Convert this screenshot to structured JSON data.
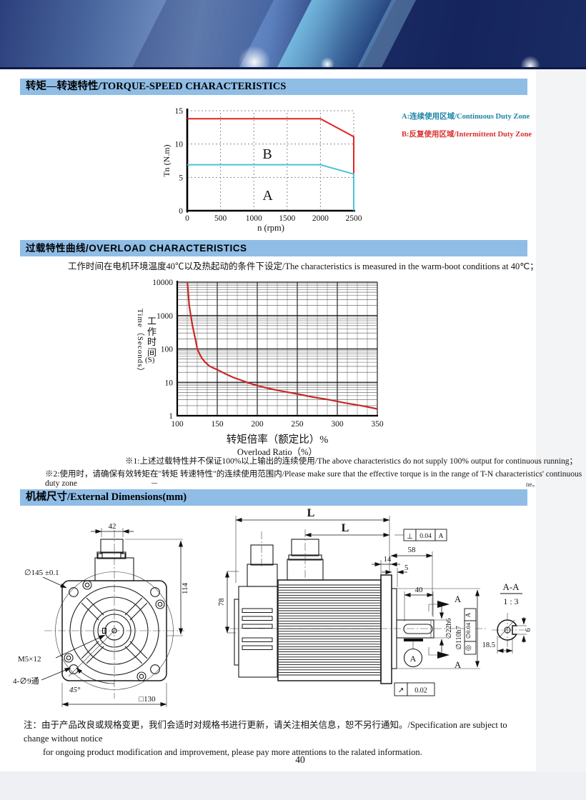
{
  "page": {
    "number": "40"
  },
  "sections": {
    "s1": "转矩—转速特性/TORQUE-SPEED CHARACTERISTICS",
    "s2": "过载特性曲线/OVERLOAD CHARACTERISTICS",
    "s3": "机械尺寸/External Dimensions(mm)"
  },
  "legend": {
    "a": "A:连续使用区域/Continuous Duty Zone",
    "a_color": "#1d86a8",
    "b": "B:反复使用区域/Intermittent Duty Zone",
    "b_color": "#d9312e"
  },
  "caption": "工作时间在电机环境温度40℃以及热起动的条件下设定/The characteristics is measured in the warm-boot conditions at 40℃；",
  "notes": {
    "n1": "※1:上述过载特性并不保证100%以上输出的连续使用/The above characteristics do not supply 100% output for continuous running；",
    "n2": "※2:使用时，请确保有效转矩在\"转矩 转速特性\"的连续使用范围内/Please make sure that the effective torque is in the range of T-N characteristics' continuous duty zone",
    "stray": "ne。",
    "bottom1": "注：由于产品改良或规格变更，我们会适时对规格书进行更新，请关注相关信息，恕不另行通知。/Specification are subject to change without notice",
    "bottom2": "for ongoing product modification and improvement, please pay more attentions to the ralated information."
  },
  "chart_data": [
    {
      "type": "line",
      "title": "Torque-Speed characteristics",
      "xlabel": "n (rpm)",
      "ylabel": "Tn (N.m)",
      "xlim": [
        0,
        2500
      ],
      "ylim": [
        0,
        15
      ],
      "xticks": [
        0,
        500,
        1000,
        1500,
        2000,
        2500
      ],
      "yticks": [
        0,
        5,
        10,
        15
      ],
      "grid": "dashed",
      "series": [
        {
          "name": "Intermittent duty limit (B)",
          "color": "#e02422",
          "points": [
            [
              0,
              13.8
            ],
            [
              2000,
              13.8
            ],
            [
              2500,
              11.1
            ],
            [
              2500,
              5.6
            ]
          ]
        },
        {
          "name": "Continuous duty limit (A)",
          "color": "#4cc2d6",
          "points": [
            [
              0,
              6.9
            ],
            [
              2000,
              6.9
            ],
            [
              2500,
              5.5
            ],
            [
              2500,
              0
            ]
          ]
        }
      ],
      "zone_labels": [
        {
          "text": "B",
          "x": 1130,
          "y": 7.8,
          "color": "#e02422"
        },
        {
          "text": "A",
          "x": 1130,
          "y": 1.6,
          "color": "#7fd2e2"
        }
      ]
    },
    {
      "type": "line",
      "title": "Overload characteristics",
      "yscale": "log",
      "xlabel_cn": "转矩倍率（额定比）%",
      "xlabel_en": "Overload Ratio（%）",
      "ylabel_en": "Time（Seconds）",
      "ylabel_cn": "工作时间",
      "ylabel_unit": "(S)",
      "xlim": [
        100,
        350
      ],
      "ylim": [
        1,
        10000
      ],
      "xticks": [
        100,
        150,
        200,
        250,
        300,
        350
      ],
      "yticks": [
        1,
        10,
        100,
        1000,
        10000
      ],
      "grid": "log",
      "series": [
        {
          "name": "overload time curve",
          "color": "#c82826",
          "points": [
            [
              112.5,
              10000
            ],
            [
              113,
              8000
            ],
            [
              114,
              4000
            ],
            [
              115,
              2000
            ],
            [
              117,
              1000
            ],
            [
              119,
              500
            ],
            [
              121,
              300
            ],
            [
              123,
              180
            ],
            [
              125,
              100
            ],
            [
              128,
              70
            ],
            [
              131,
              52
            ],
            [
              135,
              40
            ],
            [
              140,
              31
            ],
            [
              145,
              27
            ],
            [
              150,
              24
            ],
            [
              160,
              18
            ],
            [
              170,
              14
            ],
            [
              180,
              11.5
            ],
            [
              190,
              9.5
            ],
            [
              200,
              8
            ],
            [
              215,
              6.5
            ],
            [
              230,
              5.5
            ],
            [
              250,
              4.5
            ],
            [
              270,
              3.6
            ],
            [
              290,
              3
            ],
            [
              310,
              2.4
            ],
            [
              330,
              2
            ],
            [
              350,
              1.6
            ]
          ]
        }
      ]
    }
  ],
  "dims": {
    "front": {
      "top_width": "42",
      "bolt_circle": "∅145 ±0.1",
      "height": "114",
      "tap": "M5×12",
      "through_holes": "4-∅9通",
      "angle": "45°",
      "square": "□130"
    },
    "side": {
      "L1": "L",
      "L2": "L",
      "d58": "58",
      "d14": "14",
      "d5": "5",
      "d40": "40",
      "d78": "78",
      "shaft_dia": "∅22h6",
      "spigot_dia": "∅110h7",
      "sec_arrow_top": "A",
      "sec_arrow_bot": "A",
      "datum_balloon": "A",
      "perp_sym": "⊥",
      "perp_val": "0.04",
      "perp_datum": "A",
      "runout_sym": "↗",
      "runout_val": "0.02",
      "conc_sym": "◎",
      "conc_val": "∅0.04",
      "conc_datum": "A"
    },
    "section": {
      "title": "A-A",
      "scale": "1 : 3",
      "d1": "18.5",
      "d2": "6"
    }
  }
}
